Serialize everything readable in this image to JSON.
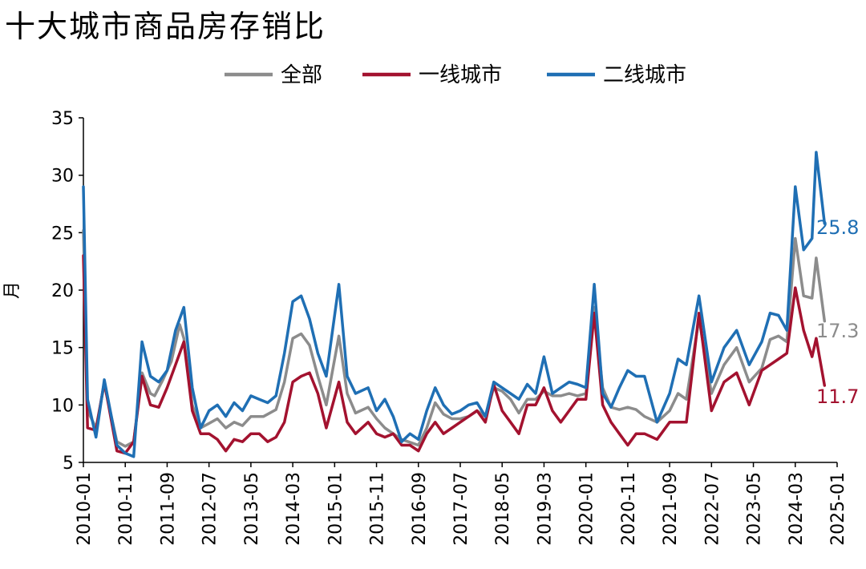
{
  "title": "十大城市商品房存销比",
  "chart_data": {
    "type": "line",
    "title": "十大城市商品房存销比",
    "ylabel": "月",
    "xlabel": "",
    "ylim": [
      5,
      35
    ],
    "yticks": [
      5,
      10,
      15,
      20,
      25,
      30,
      35
    ],
    "xlim": [
      "2010-01",
      "2025-01"
    ],
    "x_tick_labels": [
      "2010-01",
      "2010-11",
      "2011-09",
      "2012-07",
      "2013-05",
      "2014-03",
      "2015-01",
      "2015-11",
      "2016-09",
      "2017-07",
      "2018-05",
      "2019-03",
      "2020-01",
      "2020-11",
      "2021-09",
      "2022-07",
      "2023-05",
      "2024-03",
      "2025-01"
    ],
    "legend_position": "top",
    "grid": false,
    "series": [
      {
        "name": "全部",
        "color": "#8c8c8c",
        "end_label": "17.3",
        "points": [
          [
            "2010-01",
            25.2
          ],
          [
            "2010-02",
            9.5
          ],
          [
            "2010-04",
            8.0
          ],
          [
            "2010-06",
            11.8
          ],
          [
            "2010-09",
            6.8
          ],
          [
            "2010-11",
            6.4
          ],
          [
            "2011-01",
            6.8
          ],
          [
            "2011-03",
            12.8
          ],
          [
            "2011-05",
            11.0
          ],
          [
            "2011-06",
            10.8
          ],
          [
            "2011-08",
            12.2
          ],
          [
            "2011-10",
            13.8
          ],
          [
            "2011-12",
            17.0
          ],
          [
            "2012-01",
            15.8
          ],
          [
            "2012-03",
            10.0
          ],
          [
            "2012-05",
            8.0
          ],
          [
            "2012-07",
            8.4
          ],
          [
            "2012-09",
            8.8
          ],
          [
            "2012-11",
            8.0
          ],
          [
            "2013-01",
            8.5
          ],
          [
            "2013-03",
            8.2
          ],
          [
            "2013-05",
            9.0
          ],
          [
            "2013-08",
            9.0
          ],
          [
            "2013-11",
            9.6
          ],
          [
            "2014-01",
            12.0
          ],
          [
            "2014-03",
            15.8
          ],
          [
            "2014-05",
            16.2
          ],
          [
            "2014-07",
            15.2
          ],
          [
            "2014-09",
            12.5
          ],
          [
            "2014-11",
            10.0
          ],
          [
            "2015-02",
            16.0
          ],
          [
            "2015-04",
            11.0
          ],
          [
            "2015-06",
            9.3
          ],
          [
            "2015-09",
            9.8
          ],
          [
            "2015-11",
            8.8
          ],
          [
            "2016-01",
            8.0
          ],
          [
            "2016-03",
            7.5
          ],
          [
            "2016-05",
            7.0
          ],
          [
            "2016-09",
            6.5
          ],
          [
            "2016-11",
            8.0
          ],
          [
            "2017-01",
            10.2
          ],
          [
            "2017-03",
            9.2
          ],
          [
            "2017-05",
            8.8
          ],
          [
            "2017-07",
            8.8
          ],
          [
            "2017-09",
            9.0
          ],
          [
            "2017-11",
            9.5
          ],
          [
            "2018-01",
            9.0
          ],
          [
            "2018-03",
            11.5
          ],
          [
            "2018-05",
            11.2
          ],
          [
            "2018-07",
            10.5
          ],
          [
            "2018-09",
            9.3
          ],
          [
            "2018-11",
            10.5
          ],
          [
            "2019-01",
            10.5
          ],
          [
            "2019-03",
            11.2
          ],
          [
            "2019-05",
            10.8
          ],
          [
            "2019-07",
            10.8
          ],
          [
            "2019-09",
            11.0
          ],
          [
            "2019-11",
            10.8
          ],
          [
            "2020-01",
            11.0
          ],
          [
            "2020-03",
            18.5
          ],
          [
            "2020-05",
            11.5
          ],
          [
            "2020-07",
            9.8
          ],
          [
            "2020-09",
            9.6
          ],
          [
            "2020-11",
            9.8
          ],
          [
            "2021-01",
            9.6
          ],
          [
            "2021-03",
            9.0
          ],
          [
            "2021-06",
            8.5
          ],
          [
            "2021-09",
            9.5
          ],
          [
            "2021-11",
            11.0
          ],
          [
            "2022-01",
            10.5
          ],
          [
            "2022-04",
            17.5
          ],
          [
            "2022-07",
            11.0
          ],
          [
            "2022-10",
            13.5
          ],
          [
            "2023-01",
            15.0
          ],
          [
            "2023-04",
            12.0
          ],
          [
            "2023-07",
            13.2
          ],
          [
            "2023-09",
            15.7
          ],
          [
            "2023-11",
            16.0
          ],
          [
            "2024-01",
            15.5
          ],
          [
            "2024-03",
            24.5
          ],
          [
            "2024-05",
            19.5
          ],
          [
            "2024-07",
            19.3
          ],
          [
            "2024-08",
            22.8
          ],
          [
            "2024-10",
            17.3
          ]
        ]
      },
      {
        "name": "一线城市",
        "color": "#a3122f",
        "end_label": "11.7",
        "points": [
          [
            "2010-01",
            23.0
          ],
          [
            "2010-02",
            8.0
          ],
          [
            "2010-04",
            7.8
          ],
          [
            "2010-06",
            12.0
          ],
          [
            "2010-09",
            6.0
          ],
          [
            "2010-11",
            5.8
          ],
          [
            "2011-01",
            6.8
          ],
          [
            "2011-03",
            12.5
          ],
          [
            "2011-05",
            10.0
          ],
          [
            "2011-07",
            9.8
          ],
          [
            "2011-09",
            11.5
          ],
          [
            "2011-11",
            13.5
          ],
          [
            "2012-01",
            15.5
          ],
          [
            "2012-03",
            9.5
          ],
          [
            "2012-05",
            7.5
          ],
          [
            "2012-07",
            7.5
          ],
          [
            "2012-09",
            7.0
          ],
          [
            "2012-11",
            6.0
          ],
          [
            "2013-01",
            7.0
          ],
          [
            "2013-03",
            6.8
          ],
          [
            "2013-05",
            7.5
          ],
          [
            "2013-07",
            7.5
          ],
          [
            "2013-09",
            6.8
          ],
          [
            "2013-11",
            7.2
          ],
          [
            "2014-01",
            8.5
          ],
          [
            "2014-03",
            12.0
          ],
          [
            "2014-05",
            12.5
          ],
          [
            "2014-07",
            12.8
          ],
          [
            "2014-09",
            11.0
          ],
          [
            "2014-11",
            8.0
          ],
          [
            "2015-02",
            12.0
          ],
          [
            "2015-04",
            8.5
          ],
          [
            "2015-06",
            7.5
          ],
          [
            "2015-09",
            8.5
          ],
          [
            "2015-11",
            7.5
          ],
          [
            "2016-01",
            7.2
          ],
          [
            "2016-03",
            7.5
          ],
          [
            "2016-05",
            6.5
          ],
          [
            "2016-07",
            6.5
          ],
          [
            "2016-09",
            6.0
          ],
          [
            "2016-11",
            7.5
          ],
          [
            "2017-01",
            8.5
          ],
          [
            "2017-03",
            7.5
          ],
          [
            "2017-05",
            8.0
          ],
          [
            "2017-07",
            8.5
          ],
          [
            "2017-09",
            9.0
          ],
          [
            "2017-11",
            9.5
          ],
          [
            "2018-01",
            8.5
          ],
          [
            "2018-03",
            11.8
          ],
          [
            "2018-05",
            9.5
          ],
          [
            "2018-07",
            8.5
          ],
          [
            "2018-09",
            7.5
          ],
          [
            "2018-11",
            10.0
          ],
          [
            "2019-01",
            10.0
          ],
          [
            "2019-03",
            11.5
          ],
          [
            "2019-05",
            9.5
          ],
          [
            "2019-07",
            8.5
          ],
          [
            "2019-09",
            9.5
          ],
          [
            "2019-11",
            10.5
          ],
          [
            "2020-01",
            10.5
          ],
          [
            "2020-03",
            18.0
          ],
          [
            "2020-05",
            10.0
          ],
          [
            "2020-07",
            8.5
          ],
          [
            "2020-09",
            7.5
          ],
          [
            "2020-11",
            6.5
          ],
          [
            "2021-01",
            7.5
          ],
          [
            "2021-03",
            7.5
          ],
          [
            "2021-06",
            7.0
          ],
          [
            "2021-09",
            8.5
          ],
          [
            "2021-11",
            8.5
          ],
          [
            "2022-01",
            8.5
          ],
          [
            "2022-04",
            18.0
          ],
          [
            "2022-07",
            9.5
          ],
          [
            "2022-10",
            12.0
          ],
          [
            "2023-01",
            12.8
          ],
          [
            "2023-04",
            10.0
          ],
          [
            "2023-07",
            13.0
          ],
          [
            "2023-09",
            13.5
          ],
          [
            "2023-11",
            14.0
          ],
          [
            "2024-01",
            14.5
          ],
          [
            "2024-03",
            20.2
          ],
          [
            "2024-05",
            16.5
          ],
          [
            "2024-07",
            14.2
          ],
          [
            "2024-08",
            15.8
          ],
          [
            "2024-10",
            11.7
          ]
        ]
      },
      {
        "name": "二线城市",
        "color": "#1f6fb4",
        "end_label": "25.8",
        "points": [
          [
            "2010-01",
            29.0
          ],
          [
            "2010-02",
            10.5
          ],
          [
            "2010-04",
            7.2
          ],
          [
            "2010-06",
            12.2
          ],
          [
            "2010-09",
            6.5
          ],
          [
            "2010-11",
            5.8
          ],
          [
            "2011-01",
            5.5
          ],
          [
            "2011-03",
            15.5
          ],
          [
            "2011-05",
            12.5
          ],
          [
            "2011-07",
            12.0
          ],
          [
            "2011-09",
            13.0
          ],
          [
            "2011-11",
            16.5
          ],
          [
            "2012-01",
            18.5
          ],
          [
            "2012-03",
            11.5
          ],
          [
            "2012-05",
            8.0
          ],
          [
            "2012-07",
            9.5
          ],
          [
            "2012-09",
            10.0
          ],
          [
            "2012-11",
            9.0
          ],
          [
            "2013-01",
            10.2
          ],
          [
            "2013-03",
            9.5
          ],
          [
            "2013-05",
            10.8
          ],
          [
            "2013-07",
            10.5
          ],
          [
            "2013-09",
            10.2
          ],
          [
            "2013-11",
            10.8
          ],
          [
            "2014-01",
            14.5
          ],
          [
            "2014-03",
            19.0
          ],
          [
            "2014-05",
            19.5
          ],
          [
            "2014-07",
            17.5
          ],
          [
            "2014-09",
            14.5
          ],
          [
            "2014-11",
            12.5
          ],
          [
            "2015-02",
            20.5
          ],
          [
            "2015-04",
            12.5
          ],
          [
            "2015-06",
            11.0
          ],
          [
            "2015-09",
            11.5
          ],
          [
            "2015-11",
            9.5
          ],
          [
            "2016-01",
            10.5
          ],
          [
            "2016-03",
            9.0
          ],
          [
            "2016-05",
            6.8
          ],
          [
            "2016-07",
            7.5
          ],
          [
            "2016-09",
            7.0
          ],
          [
            "2016-11",
            9.5
          ],
          [
            "2017-01",
            11.5
          ],
          [
            "2017-03",
            10.0
          ],
          [
            "2017-05",
            9.2
          ],
          [
            "2017-07",
            9.5
          ],
          [
            "2017-09",
            10.0
          ],
          [
            "2017-11",
            10.2
          ],
          [
            "2018-01",
            9.0
          ],
          [
            "2018-03",
            12.0
          ],
          [
            "2018-05",
            11.5
          ],
          [
            "2018-07",
            11.0
          ],
          [
            "2018-09",
            10.5
          ],
          [
            "2018-11",
            11.8
          ],
          [
            "2019-01",
            11.0
          ],
          [
            "2019-03",
            14.2
          ],
          [
            "2019-05",
            11.0
          ],
          [
            "2019-07",
            11.5
          ],
          [
            "2019-09",
            12.0
          ],
          [
            "2019-11",
            11.8
          ],
          [
            "2020-01",
            11.5
          ],
          [
            "2020-03",
            20.5
          ],
          [
            "2020-05",
            11.0
          ],
          [
            "2020-07",
            9.8
          ],
          [
            "2020-09",
            11.5
          ],
          [
            "2020-11",
            13.0
          ],
          [
            "2021-01",
            12.5
          ],
          [
            "2021-03",
            12.5
          ],
          [
            "2021-06",
            8.5
          ],
          [
            "2021-09",
            11.0
          ],
          [
            "2021-11",
            14.0
          ],
          [
            "2022-01",
            13.5
          ],
          [
            "2022-04",
            19.5
          ],
          [
            "2022-07",
            12.0
          ],
          [
            "2022-10",
            15.0
          ],
          [
            "2023-01",
            16.5
          ],
          [
            "2023-04",
            13.5
          ],
          [
            "2023-07",
            15.5
          ],
          [
            "2023-09",
            18.0
          ],
          [
            "2023-11",
            17.8
          ],
          [
            "2024-01",
            16.5
          ],
          [
            "2024-03",
            29.0
          ],
          [
            "2024-05",
            23.5
          ],
          [
            "2024-07",
            24.5
          ],
          [
            "2024-08",
            32.0
          ],
          [
            "2024-10",
            25.8
          ]
        ]
      }
    ]
  }
}
